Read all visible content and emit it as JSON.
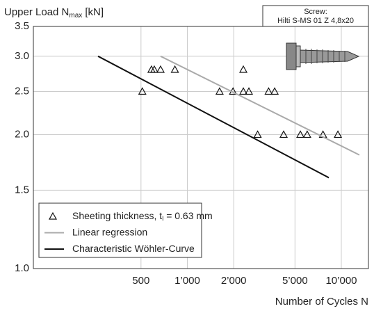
{
  "chart_data": {
    "type": "scatter",
    "title": "Upper Load N",
    "title_sub": "max",
    "title_unit": "[kN]",
    "x_label": "Number of Cycles N",
    "annotation": [
      "Screw:",
      "Hilti S-MS 01 Z 4,8x20"
    ],
    "xscale": "log",
    "yscale": "log",
    "grid": true,
    "legend": "lower left",
    "xlim": [
      100,
      15000
    ],
    "ylim": [
      1.0,
      3.5
    ],
    "xticks": [
      500,
      {
        "value": 1000,
        "label": "1’000"
      },
      {
        "value": 2000,
        "label": "2’000"
      },
      {
        "value": 5000,
        "label": "5’000"
      },
      {
        "value": 10000,
        "label": "10’000"
      }
    ],
    "yticks": [
      {
        "value": 1.0,
        "label": "1.0"
      },
      1.5,
      {
        "value": 2.0,
        "label": "2.0"
      },
      2.5,
      {
        "value": 3.0,
        "label": "3.0"
      },
      3.5
    ],
    "series": [
      {
        "type": "scatter",
        "name": "Sheeting thickness, t",
        "name_sub": "l",
        "name_suffix": "= 0.63 mm",
        "color": "#111111",
        "x": [
          510,
          585,
          610,
          670,
          830,
          1620,
          1980,
          2310,
          2310,
          2510,
          2860,
          3370,
          3690,
          4220,
          5420,
          6000,
          7600,
          9500
        ],
        "values": [
          2.5,
          2.8,
          2.8,
          2.8,
          2.8,
          2.5,
          2.5,
          2.8,
          2.5,
          2.5,
          2.0,
          2.5,
          2.5,
          2.0,
          2.0,
          2.0,
          2.0,
          2.0
        ]
      },
      {
        "type": "line",
        "name": "Linear regression",
        "color": "#aaaaaa",
        "x": [
          670,
          13100
        ],
        "values": [
          3.0,
          1.8
        ]
      },
      {
        "type": "line",
        "name": "Characteristic Wöhler-Curve",
        "color": "#111111",
        "x": [
          263,
          8300
        ],
        "values": [
          3.0,
          1.6
        ]
      }
    ]
  }
}
